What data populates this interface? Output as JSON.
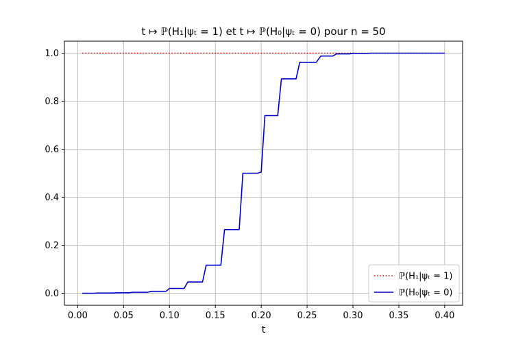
{
  "chart_data": {
    "type": "line",
    "title": "t ↦ ℙ(H₁|ψₜ = 1) et t ↦ ℙ(H₀|ψₜ = 0) pour n = 50",
    "xlabel": "t",
    "ylabel": "",
    "xlim": [
      -0.0145,
      0.4195
    ],
    "ylim": [
      -0.05,
      1.05
    ],
    "xticks": [
      0.0,
      0.05,
      0.1,
      0.15,
      0.2,
      0.25,
      0.3,
      0.35,
      0.4
    ],
    "xtick_labels": [
      "0.00",
      "0.05",
      "0.10",
      "0.15",
      "0.20",
      "0.25",
      "0.30",
      "0.35",
      "0.40"
    ],
    "yticks": [
      0.0,
      0.2,
      0.4,
      0.6,
      0.8,
      1.0
    ],
    "ytick_labels": [
      "0.0",
      "0.2",
      "0.4",
      "0.6",
      "0.8",
      "1.0"
    ],
    "grid": true,
    "legend": "lower right",
    "series": [
      {
        "name": "ℙ(H₁|ψₜ = 1)",
        "color": "#dd0000",
        "style": "dotted",
        "x": [
          0.005,
          0.4
        ],
        "y": [
          1.0,
          1.0
        ]
      },
      {
        "name": "ℙ(H₀|ψₜ = 0)",
        "color": "#0000cc",
        "style": "solid",
        "x": [
          0.005,
          0.018,
          0.022,
          0.038,
          0.042,
          0.056,
          0.06,
          0.076,
          0.08,
          0.096,
          0.1,
          0.116,
          0.12,
          0.136,
          0.14,
          0.156,
          0.16,
          0.176,
          0.18,
          0.196,
          0.2,
          0.204,
          0.21,
          0.218,
          0.222,
          0.238,
          0.242,
          0.26,
          0.265,
          0.278,
          0.282,
          0.296,
          0.3,
          0.316,
          0.32,
          0.4
        ],
        "y": [
          0.0,
          0.0,
          0.001,
          0.001,
          0.002,
          0.002,
          0.004,
          0.004,
          0.008,
          0.008,
          0.02,
          0.02,
          0.047,
          0.047,
          0.117,
          0.117,
          0.265,
          0.265,
          0.5,
          0.5,
          0.505,
          0.74,
          0.74,
          0.74,
          0.893,
          0.893,
          0.962,
          0.962,
          0.988,
          0.988,
          0.997,
          0.997,
          0.999,
          0.999,
          1.0,
          1.0
        ]
      }
    ]
  }
}
